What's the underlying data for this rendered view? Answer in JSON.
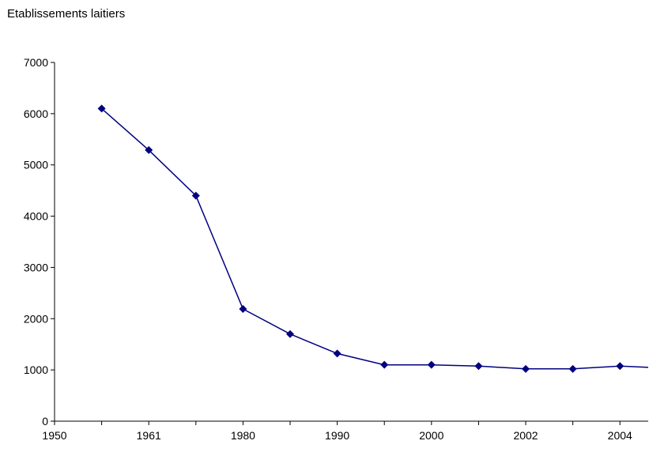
{
  "chart_data": {
    "type": "line",
    "title": "Etablissements laitiers",
    "xlabel": "",
    "ylabel": "",
    "ylim": [
      0,
      7000
    ],
    "yticks": [
      0,
      1000,
      2000,
      3000,
      4000,
      5000,
      6000,
      7000
    ],
    "y_tick_labels": [
      "0",
      "1000",
      "2000",
      "3000",
      "4000",
      "5000",
      "6000",
      "7000"
    ],
    "x_tick_labels": [
      "1950",
      "1961",
      "1980",
      "1990",
      "2000",
      "2002",
      "2004"
    ],
    "grid": false,
    "legend": "none",
    "series": [
      {
        "color": "#000080",
        "marker": "diamond",
        "values": [
          6100,
          5290,
          4400,
          2190,
          1700,
          1320,
          1100,
          1100,
          1075,
          1020,
          1020,
          1075,
          1050
        ]
      }
    ]
  }
}
